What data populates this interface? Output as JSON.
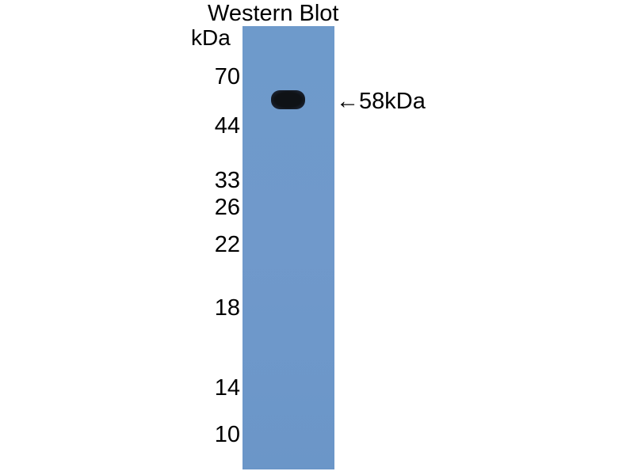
{
  "title": "Western Blot",
  "unit_label": "kDa",
  "markers": [
    "70",
    "44",
    "33",
    "26",
    "22",
    "18",
    "14",
    "10"
  ],
  "band_annotation": "←58kDa",
  "colors": {
    "membrane": "#6e9acb",
    "band": "#0f1216"
  }
}
